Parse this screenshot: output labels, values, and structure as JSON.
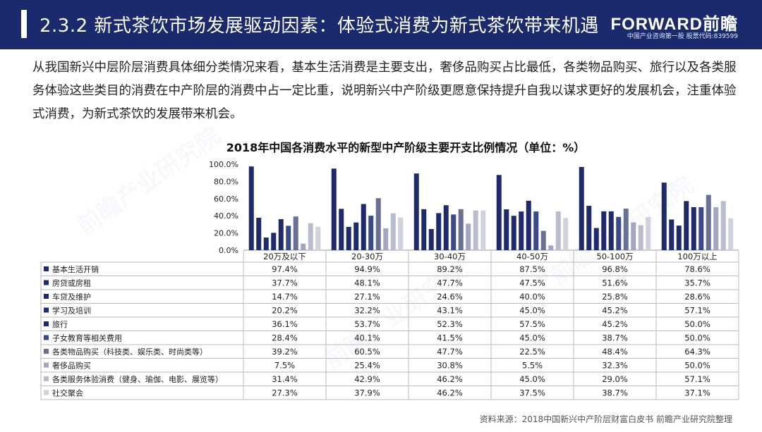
{
  "header": {
    "title": "2.3.2 新式茶饮市场发展驱动因素：体验式消费为新式茶饮带来机遇",
    "logo": "FORWARD前瞻",
    "logo_sub": "中国产业咨询第一股 股票代码:839599"
  },
  "intro": "从我国新兴中层阶层消费具体细分类情况来看，基本生活消费是主要支出，奢侈品购买占比最低，各类物品购买、旅行以及各类服务体验这些类目的消费在中产阶层的消费中占一定比重，说明新兴中产阶级更愿意保持提升自我以谋求更好的发展机会，注重体验式消费，为新式茶饮的发展带来机会。",
  "source": "资料来源：2018中国新兴中产阶层财富白皮书 前瞻产业研究院整理",
  "chart_data": {
    "type": "bar",
    "title": "2018年中国各消费水平的新型中产阶级主要开支比例情况（单位：%）",
    "categories": [
      "20万及以下",
      "20-30万",
      "30-40万",
      "40-50万",
      "50-100万",
      "100万以上"
    ],
    "y_ticks": [
      "100.0%",
      "80.0%",
      "60.0%",
      "40.0%",
      "20.0%",
      "0.0%"
    ],
    "ylim": [
      0,
      100
    ],
    "grid": false,
    "legend": "table-left",
    "series": [
      {
        "name": "基本生活开销",
        "color": "#1f2a6b",
        "values": [
          97.4,
          94.9,
          89.2,
          87.5,
          96.8,
          78.6
        ],
        "labels": [
          "97.4%",
          "94.9%",
          "89.2%",
          "87.5%",
          "96.8%",
          "78.6%"
        ]
      },
      {
        "name": "房贷或房租",
        "color": "#1f2a6b",
        "values": [
          37.7,
          48.1,
          47.7,
          47.5,
          51.6,
          35.7
        ],
        "labels": [
          "37.7%",
          "48.1%",
          "47.7%",
          "47.5%",
          "51.6%",
          "35.7%"
        ]
      },
      {
        "name": "车贷及维护",
        "color": "#1f2a6b",
        "values": [
          14.7,
          27.1,
          24.6,
          40.0,
          25.8,
          28.6
        ],
        "labels": [
          "14.7%",
          "27.1%",
          "24.6%",
          "40.0%",
          "25.8%",
          "28.6%"
        ]
      },
      {
        "name": "学习及培训",
        "color": "#1f2a6b",
        "values": [
          20.2,
          32.2,
          43.1,
          45.0,
          45.2,
          57.1
        ],
        "labels": [
          "20.2%",
          "32.2%",
          "43.1%",
          "45.0%",
          "45.2%",
          "57.1%"
        ]
      },
      {
        "name": "旅行",
        "color": "#1f2a6b",
        "values": [
          36.1,
          53.7,
          52.3,
          57.5,
          45.2,
          50.0
        ],
        "labels": [
          "36.1%",
          "53.7%",
          "52.3%",
          "57.5%",
          "45.2%",
          "50.0%"
        ]
      },
      {
        "name": "子女教育等相关费用",
        "color": "#3a4a88",
        "values": [
          28.4,
          40.1,
          41.5,
          45.0,
          38.7,
          50.0
        ],
        "labels": [
          "28.4%",
          "40.1%",
          "41.5%",
          "45.0%",
          "38.7%",
          "50.0%"
        ]
      },
      {
        "name": "各类物品购买（科技类、娱乐类、时尚类等）",
        "color": "#6a6f95",
        "values": [
          39.2,
          60.5,
          47.7,
          22.5,
          48.4,
          64.3
        ],
        "labels": [
          "39.2%",
          "60.5%",
          "47.7%",
          "22.5%",
          "48.4%",
          "64.3%"
        ]
      },
      {
        "name": "奢侈品购买",
        "color": "#a2a6c0",
        "values": [
          7.5,
          25.4,
          30.8,
          5.5,
          32.3,
          50.0
        ],
        "labels": [
          "7.5%",
          "25.4%",
          "30.8%",
          "5.5%",
          "32.3%",
          "50.0%"
        ]
      },
      {
        "name": "各类服务体验消费（健身、瑜伽、电影、展览等）",
        "color": "#b9bccd",
        "values": [
          31.4,
          42.9,
          46.2,
          45.0,
          29.0,
          57.1
        ],
        "labels": [
          "31.4%",
          "42.9%",
          "46.2%",
          "45.0%",
          "29.0%",
          "57.1%"
        ]
      },
      {
        "name": "社交聚会",
        "color": "#cfd1dc",
        "values": [
          27.3,
          37.9,
          46.2,
          37.5,
          38.7,
          37.1
        ],
        "labels": [
          "27.3%",
          "37.9%",
          "46.2%",
          "37.5%",
          "38.7%",
          "37.1%"
        ]
      }
    ]
  }
}
